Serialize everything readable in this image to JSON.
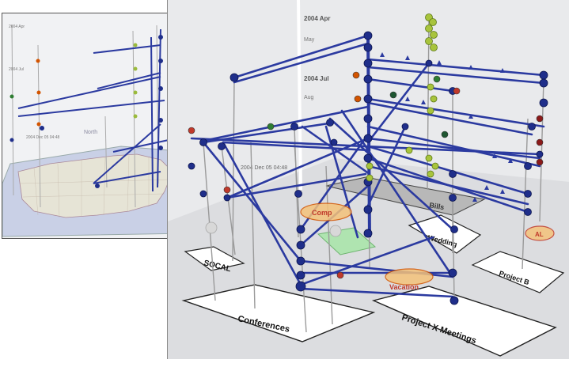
{
  "main_view": {
    "time_labels": [
      "2004 Apr",
      "May",
      "2004 Jul",
      "Aug",
      "2004 Dec 05 04:48"
    ],
    "group_labels": [
      "SOCAL",
      "Conferences",
      "Project X Meetings",
      "Wedding",
      "Project B"
    ],
    "event_labels": [
      "Comp",
      "Vacation",
      "AL",
      "Bills"
    ],
    "colors": {
      "line": "#2b3aa0",
      "node": "#1f2e8a",
      "green": "#9bbb3c",
      "red": "#c0392b",
      "plane": "#d7d9dc"
    }
  },
  "inset_view": {
    "time_labels": [
      "2004 Apr",
      "2004 Jul",
      "2004 Dec 05 04:48"
    ],
    "map_label": "North"
  }
}
